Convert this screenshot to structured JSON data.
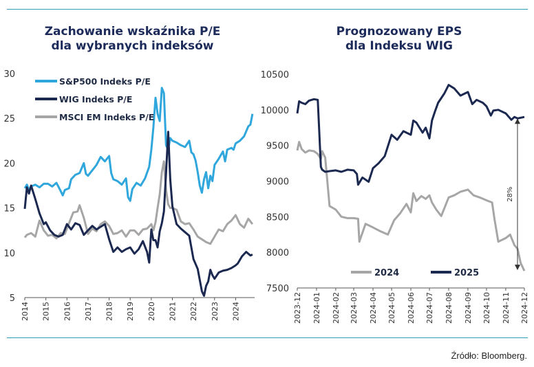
{
  "left": {
    "title_line1": "Zachowanie wskaźnika P/E",
    "title_line2": "dla wybranych indeksów"
  },
  "right": {
    "title_line1": "Prognozowany EPS",
    "title_line2": "dla Indeksu WIG"
  },
  "source": "Źródło: Bloomberg.",
  "chart_data": [
    {
      "type": "line",
      "title": "Zachowanie wskaźnika P/E dla wybranych indeksów",
      "x_ticks": [
        "2014",
        "2015",
        "2016",
        "2017",
        "2018",
        "2019",
        "2020",
        "2021",
        "2022",
        "2023",
        "2024"
      ],
      "xlim": [
        2014.0,
        2024.9
      ],
      "ylim": [
        5,
        30
      ],
      "y_ticks": [
        5,
        10,
        15,
        20,
        25,
        30
      ],
      "legend_position": "top-left",
      "grid": false,
      "series": [
        {
          "name": "S&P500 Indeks P/E",
          "color": "#2fa6dc",
          "x": [
            2014.0,
            2014.1,
            2014.2,
            2014.3,
            2014.5,
            2014.7,
            2014.9,
            2015.1,
            2015.3,
            2015.5,
            2015.7,
            2015.8,
            2015.9,
            2016.1,
            2016.2,
            2016.4,
            2016.6,
            2016.8,
            2016.9,
            2017.0,
            2017.2,
            2017.4,
            2017.6,
            2017.8,
            2018.0,
            2018.1,
            2018.2,
            2018.4,
            2018.6,
            2018.8,
            2018.9,
            2019.0,
            2019.1,
            2019.3,
            2019.5,
            2019.7,
            2019.9,
            2020.0,
            2020.1,
            2020.2,
            2020.3,
            2020.4,
            2020.5,
            2020.6,
            2020.7,
            2020.8,
            2020.9,
            2021.0,
            2021.2,
            2021.4,
            2021.6,
            2021.8,
            2021.9,
            2022.0,
            2022.1,
            2022.2,
            2022.3,
            2022.4,
            2022.5,
            2022.6,
            2022.7,
            2022.8,
            2022.9,
            2023.0,
            2023.2,
            2023.4,
            2023.5,
            2023.6,
            2023.8,
            2023.9,
            2024.0,
            2024.2,
            2024.4,
            2024.6,
            2024.7,
            2024.8
          ],
          "values": [
            17.2,
            17.6,
            17.0,
            17.4,
            17.6,
            17.3,
            17.7,
            17.7,
            17.4,
            17.8,
            16.9,
            16.4,
            17.0,
            17.2,
            18.2,
            18.7,
            18.9,
            20.0,
            18.8,
            18.6,
            19.2,
            19.8,
            20.7,
            20.2,
            20.8,
            18.9,
            18.2,
            18.0,
            17.6,
            18.3,
            16.2,
            15.8,
            17.1,
            17.8,
            17.5,
            18.3,
            19.6,
            21.5,
            24.0,
            27.3,
            25.5,
            24.7,
            28.4,
            27.8,
            22.0,
            21.5,
            22.8,
            22.5,
            22.3,
            22.0,
            21.8,
            22.5,
            21.2,
            21.0,
            20.3,
            19.0,
            17.5,
            16.7,
            18.2,
            19.0,
            17.2,
            18.6,
            18.0,
            19.8,
            20.5,
            21.3,
            20.2,
            21.5,
            21.7,
            21.5,
            22.2,
            22.5,
            23.0,
            24.1,
            24.3,
            25.5
          ]
        },
        {
          "name": "WIG Indeks P/E",
          "color": "#1b2850",
          "x": [
            2014.0,
            2014.1,
            2014.2,
            2014.3,
            2014.5,
            2014.7,
            2014.9,
            2015.0,
            2015.2,
            2015.4,
            2015.6,
            2015.8,
            2016.0,
            2016.2,
            2016.4,
            2016.6,
            2016.8,
            2017.0,
            2017.2,
            2017.4,
            2017.6,
            2017.8,
            2018.0,
            2018.2,
            2018.4,
            2018.6,
            2018.8,
            2019.0,
            2019.2,
            2019.4,
            2019.6,
            2019.8,
            2019.9,
            2020.0,
            2020.1,
            2020.2,
            2020.3,
            2020.4,
            2020.5,
            2020.6,
            2020.7,
            2020.8,
            2020.9,
            2021.0,
            2021.2,
            2021.4,
            2021.6,
            2021.8,
            2022.0,
            2022.2,
            2022.4,
            2022.5,
            2022.6,
            2022.7,
            2022.8,
            2022.9,
            2023.0,
            2023.2,
            2023.4,
            2023.6,
            2023.8,
            2024.0,
            2024.1,
            2024.3,
            2024.5,
            2024.7,
            2024.8
          ],
          "values": [
            14.9,
            17.3,
            16.6,
            17.5,
            16.0,
            14.4,
            13.2,
            13.4,
            12.5,
            12.0,
            11.8,
            12.0,
            13.2,
            12.6,
            13.3,
            13.1,
            12.0,
            12.5,
            13.0,
            12.6,
            12.9,
            13.2,
            11.5,
            10.1,
            10.6,
            10.1,
            10.4,
            10.6,
            9.9,
            10.4,
            11.3,
            10.1,
            8.9,
            12.6,
            11.4,
            11.4,
            10.6,
            12.4,
            13.3,
            14.6,
            18.9,
            23.5,
            18.2,
            15.2,
            13.2,
            12.7,
            12.3,
            11.9,
            9.3,
            8.2,
            5.7,
            5.2,
            6.3,
            6.8,
            8.1,
            7.5,
            7.1,
            7.8,
            8.0,
            8.1,
            8.3,
            8.6,
            8.8,
            9.6,
            10.1,
            9.7,
            9.8
          ]
        },
        {
          "name": "MSCI EM Indeks P/E",
          "color": "#a6a6a6",
          "x": [
            2014.0,
            2014.1,
            2014.3,
            2014.5,
            2014.7,
            2014.9,
            2015.1,
            2015.3,
            2015.5,
            2015.7,
            2015.9,
            2016.1,
            2016.3,
            2016.5,
            2016.6,
            2016.8,
            2017.0,
            2017.2,
            2017.4,
            2017.6,
            2017.8,
            2018.0,
            2018.2,
            2018.4,
            2018.6,
            2018.8,
            2019.0,
            2019.2,
            2019.4,
            2019.6,
            2019.8,
            2020.0,
            2020.1,
            2020.2,
            2020.3,
            2020.4,
            2020.5,
            2020.6,
            2020.7,
            2020.8,
            2020.9,
            2021.0,
            2021.2,
            2021.4,
            2021.6,
            2021.8,
            2022.0,
            2022.2,
            2022.4,
            2022.6,
            2022.8,
            2023.0,
            2023.2,
            2023.4,
            2023.6,
            2023.8,
            2024.0,
            2024.2,
            2024.4,
            2024.6,
            2024.8
          ],
          "values": [
            11.7,
            12.0,
            12.2,
            11.8,
            13.6,
            12.5,
            11.9,
            12.0,
            11.6,
            12.2,
            12.1,
            13.3,
            14.5,
            14.6,
            15.3,
            13.9,
            12.1,
            12.7,
            12.4,
            13.2,
            13.5,
            13.0,
            12.1,
            12.2,
            12.5,
            11.8,
            12.5,
            12.5,
            12.0,
            12.6,
            12.7,
            13.2,
            12.5,
            13.4,
            15.0,
            16.5,
            19.0,
            20.2,
            17.0,
            15.4,
            15.0,
            15.0,
            14.8,
            13.5,
            13.2,
            13.3,
            12.6,
            11.8,
            11.5,
            11.2,
            11.0,
            11.8,
            12.6,
            12.4,
            13.2,
            13.6,
            14.2,
            13.2,
            12.8,
            13.8,
            13.2
          ]
        }
      ]
    },
    {
      "type": "line",
      "title": "Prognozowany EPS dla Indeksu WIG",
      "x_ticks": [
        "2023-12",
        "2024-01",
        "2024-02",
        "2024-03",
        "2024-04",
        "2024-05",
        "2024-06",
        "2024-07",
        "2024-08",
        "2024-09",
        "2024-10",
        "2024-11",
        "2024-12"
      ],
      "ylim": [
        7500,
        10500
      ],
      "y_ticks": [
        7500,
        8000,
        8500,
        9000,
        9500,
        10000,
        10500
      ],
      "legend_position": "bottom",
      "grid": false,
      "annotation": "28%",
      "series": [
        {
          "name": "2024",
          "color": "#a6a6a6",
          "x": [
            "2023-12-01",
            "2023-12-04",
            "2023-12-08",
            "2023-12-14",
            "2023-12-20",
            "2023-12-28",
            "2024-01-03",
            "2024-01-08",
            "2024-01-10",
            "2024-01-15",
            "2024-01-22",
            "2024-02-01",
            "2024-02-10",
            "2024-02-20",
            "2024-03-01",
            "2024-03-08",
            "2024-03-10",
            "2024-03-20",
            "2024-04-01",
            "2024-04-12",
            "2024-04-25",
            "2024-05-05",
            "2024-05-15",
            "2024-05-25",
            "2024-06-01",
            "2024-06-05",
            "2024-06-10",
            "2024-06-18",
            "2024-06-25",
            "2024-07-01",
            "2024-07-05",
            "2024-07-12",
            "2024-07-20",
            "2024-08-01",
            "2024-08-10",
            "2024-08-20",
            "2024-09-01",
            "2024-09-10",
            "2024-09-20",
            "2024-10-01",
            "2024-10-10",
            "2024-10-14",
            "2024-10-20",
            "2024-11-01",
            "2024-11-08",
            "2024-11-15",
            "2024-11-20",
            "2024-11-25",
            "2024-12-01"
          ],
          "values": [
            9430,
            9550,
            9450,
            9400,
            9430,
            9420,
            9380,
            9310,
            9420,
            9330,
            8650,
            8600,
            8500,
            8480,
            8480,
            8470,
            8150,
            8400,
            8350,
            8300,
            8250,
            8450,
            8550,
            8680,
            8560,
            8830,
            8720,
            8790,
            8750,
            8800,
            8700,
            8600,
            8510,
            8770,
            8800,
            8850,
            8880,
            8800,
            8770,
            8730,
            8700,
            8460,
            8150,
            8200,
            8250,
            8100,
            8050,
            7850,
            7740
          ]
        },
        {
          "name": "2025",
          "color": "#1b2850",
          "x": [
            "2023-12-01",
            "2023-12-04",
            "2023-12-08",
            "2023-12-14",
            "2023-12-20",
            "2023-12-28",
            "2024-01-03",
            "2024-01-08",
            "2024-01-10",
            "2024-01-15",
            "2024-01-22",
            "2024-02-01",
            "2024-02-10",
            "2024-02-20",
            "2024-03-01",
            "2024-03-06",
            "2024-03-08",
            "2024-03-15",
            "2024-03-25",
            "2024-04-01",
            "2024-04-10",
            "2024-04-20",
            "2024-05-01",
            "2024-05-10",
            "2024-05-20",
            "2024-06-01",
            "2024-06-05",
            "2024-06-10",
            "2024-06-20",
            "2024-06-25",
            "2024-07-01",
            "2024-07-05",
            "2024-07-10",
            "2024-07-15",
            "2024-07-25",
            "2024-08-01",
            "2024-08-10",
            "2024-08-20",
            "2024-09-01",
            "2024-09-08",
            "2024-09-15",
            "2024-09-25",
            "2024-10-01",
            "2024-10-08",
            "2024-10-12",
            "2024-10-20",
            "2024-11-01",
            "2024-11-10",
            "2024-11-15",
            "2024-11-20",
            "2024-12-01"
          ],
          "values": [
            9950,
            10120,
            10100,
            10080,
            10130,
            10150,
            10140,
            9200,
            9160,
            9130,
            9140,
            9150,
            9130,
            9160,
            9150,
            9100,
            8950,
            9050,
            8990,
            9180,
            9250,
            9350,
            9650,
            9580,
            9700,
            9650,
            9850,
            9820,
            9680,
            9750,
            9600,
            9850,
            9980,
            10100,
            10230,
            10350,
            10300,
            10200,
            10250,
            10080,
            10140,
            10100,
            10050,
            9920,
            9990,
            10000,
            9950,
            9860,
            9900,
            9880,
            9900
          ]
        }
      ]
    }
  ]
}
